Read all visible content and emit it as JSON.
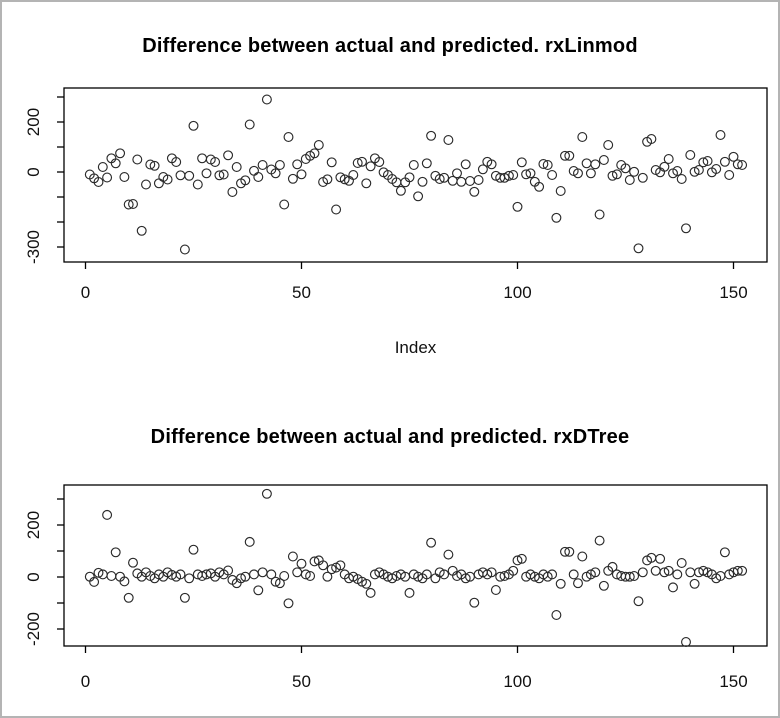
{
  "frame": {
    "background": "#ffffff",
    "border_color": "#b4b4b4"
  },
  "chart_data": [
    {
      "type": "scatter",
      "title": "Difference between actual and predicted. rxLinmod",
      "xlabel": "Index",
      "marker": "open-circle",
      "point_color": "#2a2a2a",
      "axis_color": "#000000",
      "x_start": 1,
      "x_ticks": [
        0,
        50,
        100,
        150
      ],
      "y_ticks": [
        300,
        200,
        100,
        0,
        -100,
        -200,
        -300
      ],
      "y_tick_labels_shown": [
        200,
        0,
        -300
      ],
      "xlim": [
        -5,
        158
      ],
      "ylim": [
        -335,
        335
      ],
      "grid": false,
      "values": [
        -10,
        -25,
        -40,
        20,
        -22,
        55,
        35,
        75,
        -20,
        -130,
        -128,
        50,
        -235,
        -50,
        30,
        25,
        -45,
        -20,
        -30,
        55,
        40,
        -13,
        -310,
        -15,
        185,
        -50,
        55,
        -5,
        50,
        40,
        -13,
        -10,
        67,
        -80,
        20,
        -45,
        -33,
        190,
        5,
        -20,
        28,
        290,
        10,
        -5,
        28,
        -130,
        140,
        -27,
        31,
        -9,
        52,
        65,
        75,
        108,
        -40,
        -29,
        39,
        -150,
        -21,
        -29,
        -35,
        -12,
        36,
        41,
        -45,
        23,
        55,
        40,
        -1,
        -12,
        -28,
        -41,
        -75,
        -41,
        -21,
        28,
        -97,
        -39,
        35,
        145,
        -15,
        -28,
        -23,
        128,
        -35,
        -5,
        -39,
        31,
        -36,
        -79,
        -32,
        11,
        41,
        31,
        -15,
        -23,
        -23,
        -15,
        -12,
        -139,
        39,
        -9,
        -5,
        -39,
        -59,
        32,
        28,
        -12,
        -183,
        -76,
        65,
        65,
        4,
        -5,
        140,
        35,
        -5,
        31,
        -170,
        48,
        108,
        -15,
        -9,
        28,
        15,
        -32,
        1,
        -305,
        -23,
        121,
        132,
        8,
        -1,
        21,
        52,
        -5,
        4,
        -28,
        -225,
        68,
        1,
        8,
        39,
        44,
        -1,
        12,
        148,
        41,
        -12,
        61,
        31,
        28
      ]
    },
    {
      "type": "scatter",
      "title": "Difference between actual and predicted. rxDTree",
      "xlabel": "",
      "marker": "open-circle",
      "point_color": "#2a2a2a",
      "axis_color": "#000000",
      "x_start": 1,
      "x_ticks": [
        0,
        50,
        100,
        150
      ],
      "y_ticks": [
        300,
        200,
        100,
        0,
        -100,
        -200
      ],
      "y_tick_labels_shown": [
        200,
        0,
        -200
      ],
      "xlim": [
        -5,
        158
      ],
      "ylim": [
        -265,
        355
      ],
      "grid": false,
      "values": [
        1,
        -19,
        16,
        10,
        239,
        4,
        95,
        1,
        -17,
        -80,
        55,
        14,
        1,
        18,
        4,
        -5,
        10,
        1,
        18,
        8,
        1,
        10,
        -80,
        -5,
        105,
        10,
        4,
        10,
        14,
        1,
        18,
        10,
        25,
        -11,
        -24,
        -5,
        1,
        135,
        10,
        -51,
        18,
        320,
        10,
        -18,
        -24,
        4,
        -101,
        79,
        18,
        51,
        10,
        4,
        60,
        64,
        45,
        1,
        30,
        36,
        45,
        10,
        -5,
        1,
        -8,
        -18,
        -26,
        -61,
        10,
        18,
        10,
        1,
        -5,
        4,
        10,
        1,
        -61,
        10,
        1,
        -5,
        10,
        132,
        -5,
        18,
        10,
        86,
        24,
        4,
        10,
        -5,
        1,
        -99,
        10,
        18,
        10,
        18,
        -50,
        1,
        4,
        10,
        24,
        64,
        70,
        1,
        10,
        1,
        -5,
        10,
        1,
        10,
        -146,
        -26,
        97,
        97,
        10,
        -24,
        79,
        1,
        10,
        18,
        140,
        -34,
        24,
        39,
        10,
        4,
        1,
        1,
        4,
        -93,
        18,
        64,
        74,
        24,
        70,
        18,
        24,
        -40,
        10,
        54,
        -250,
        18,
        -26,
        18,
        24,
        18,
        10,
        -5,
        4,
        95,
        10,
        18,
        24,
        24
      ]
    }
  ]
}
